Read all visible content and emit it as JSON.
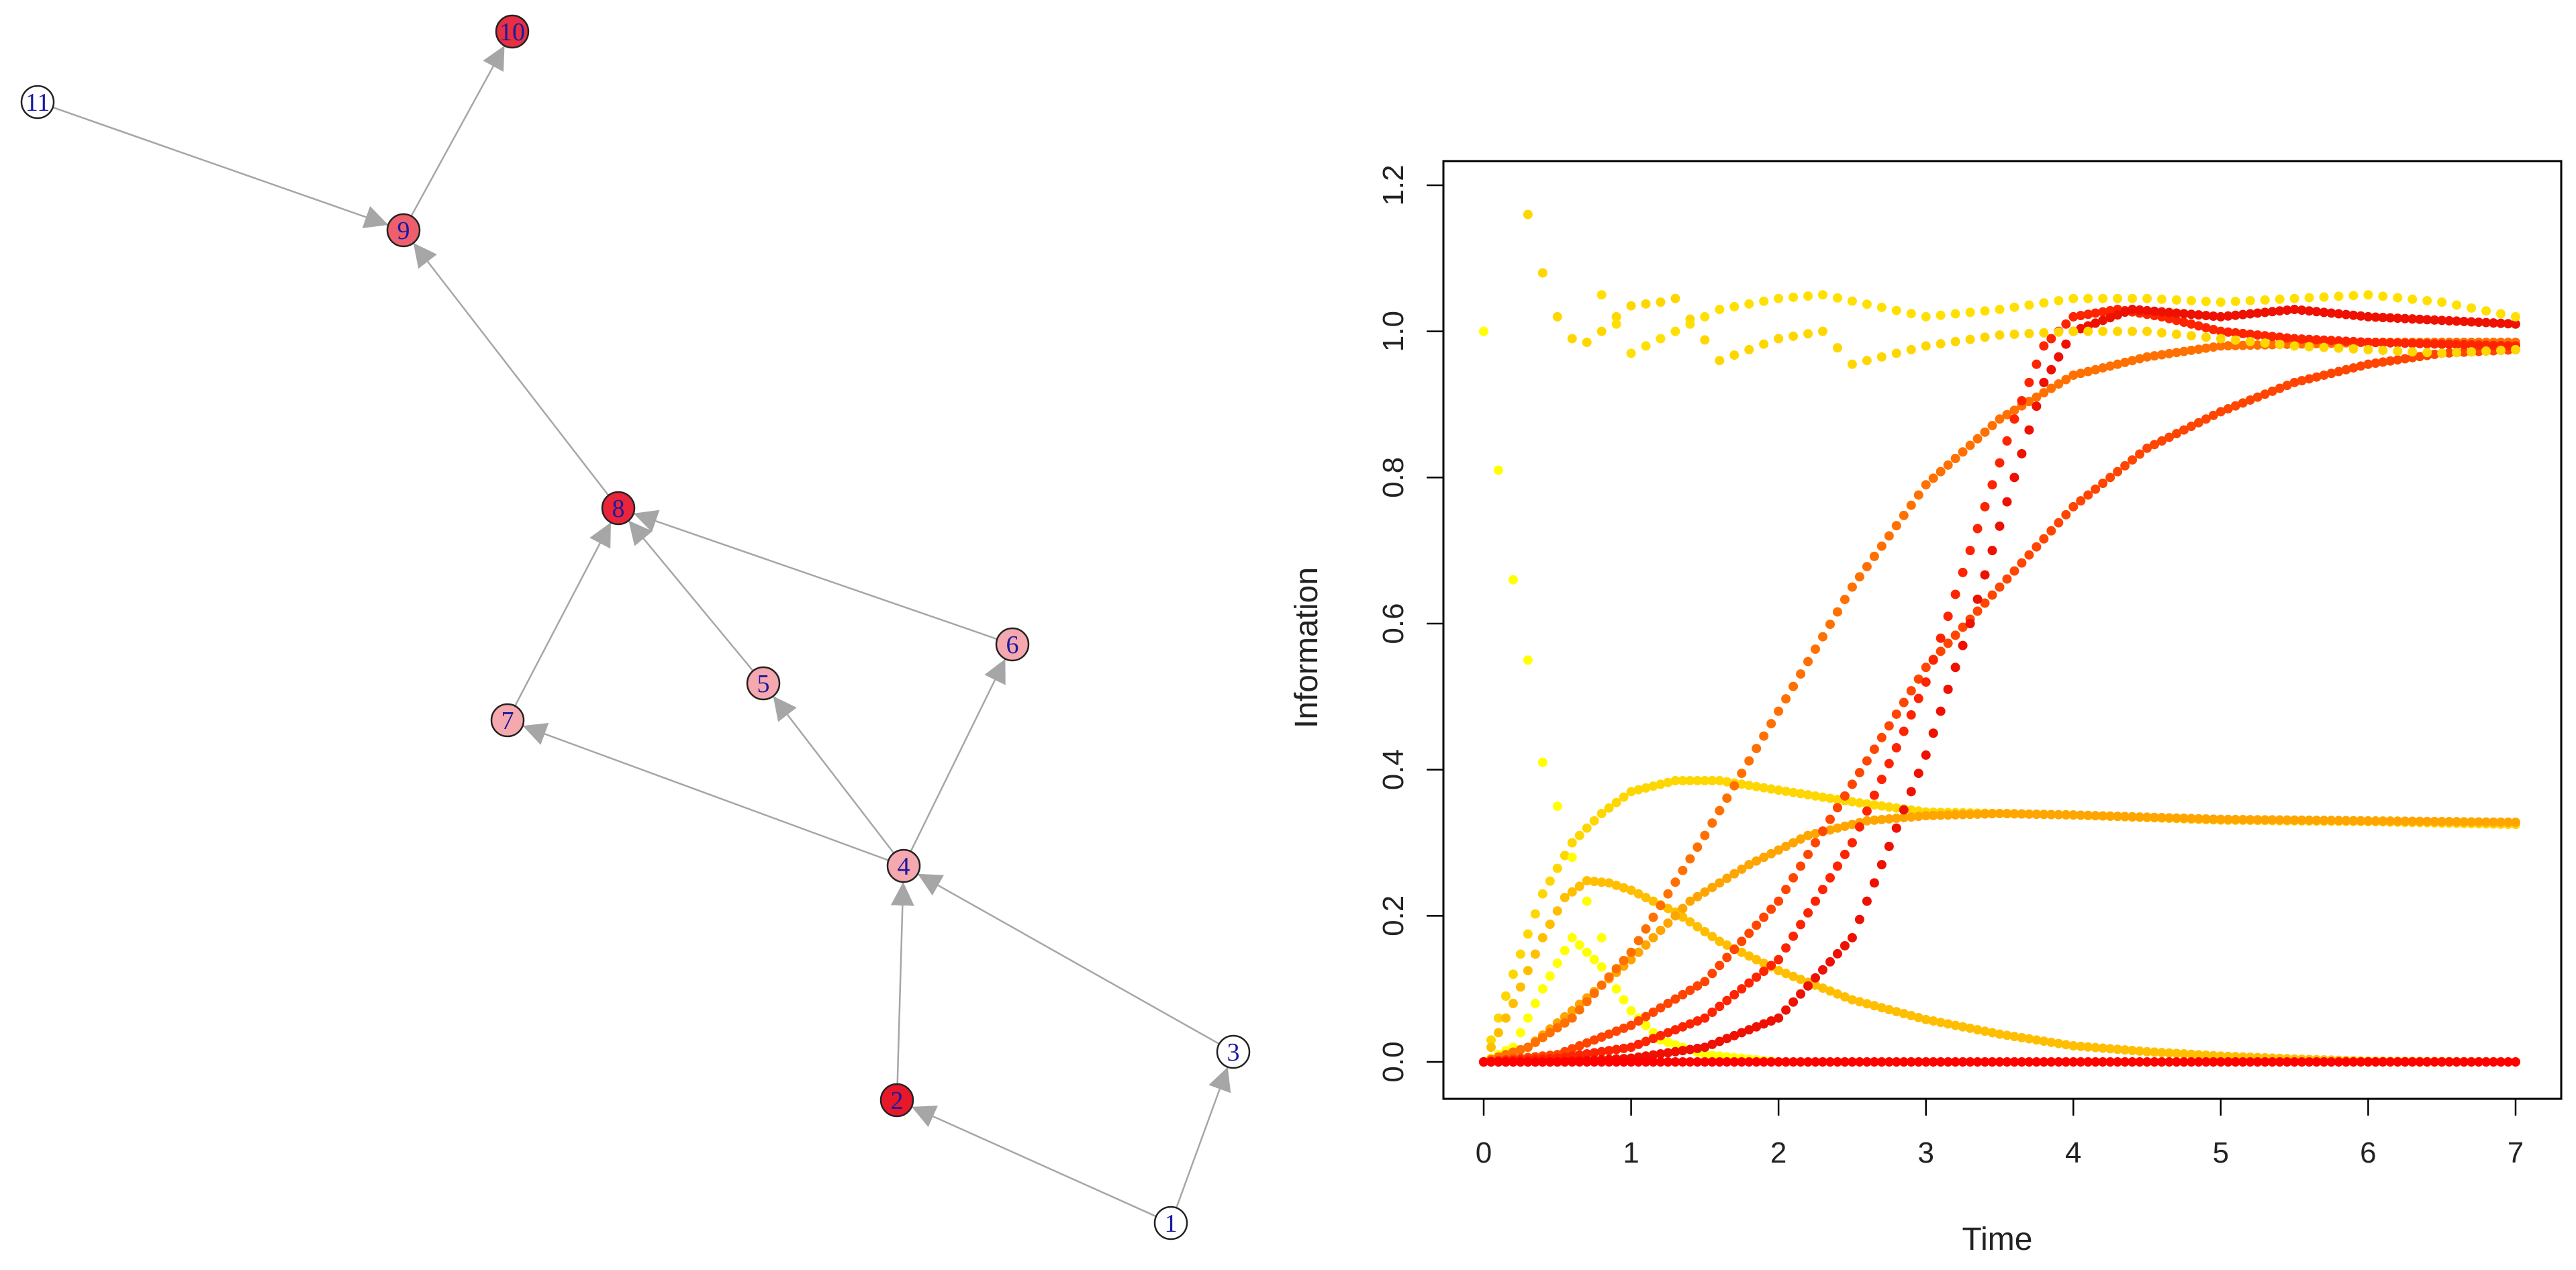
{
  "network": {
    "nodes": [
      {
        "id": "1",
        "label": "1",
        "color": "#ffffff"
      },
      {
        "id": "2",
        "label": "2",
        "color": "#e8182b"
      },
      {
        "id": "3",
        "label": "3",
        "color": "#ffffff"
      },
      {
        "id": "4",
        "label": "4",
        "color": "#f5a8ae"
      },
      {
        "id": "5",
        "label": "5",
        "color": "#f5a8ae"
      },
      {
        "id": "6",
        "label": "6",
        "color": "#f5a8ae"
      },
      {
        "id": "7",
        "label": "7",
        "color": "#f5a8ae"
      },
      {
        "id": "8",
        "label": "8",
        "color": "#e8253a"
      },
      {
        "id": "9",
        "label": "9",
        "color": "#ee5f6e"
      },
      {
        "id": "10",
        "label": "10",
        "color": "#e52f42"
      },
      {
        "id": "11",
        "label": "11",
        "color": "#ffffff"
      }
    ],
    "edges": [
      [
        "1",
        "2"
      ],
      [
        "1",
        "3"
      ],
      [
        "2",
        "4"
      ],
      [
        "3",
        "4"
      ],
      [
        "4",
        "7"
      ],
      [
        "4",
        "5"
      ],
      [
        "4",
        "6"
      ],
      [
        "7",
        "8"
      ],
      [
        "5",
        "8"
      ],
      [
        "6",
        "8"
      ],
      [
        "8",
        "9"
      ],
      [
        "11",
        "9"
      ],
      [
        "9",
        "10"
      ]
    ],
    "label_color": "#1a1aa0",
    "edge_color": "#a6a6a6"
  },
  "chart_data": {
    "type": "scatter",
    "xlabel": "Time",
    "ylabel": "Information",
    "xlim": [
      0,
      7
    ],
    "ylim": [
      0,
      1.2
    ],
    "xticks": [
      "0",
      "1",
      "2",
      "3",
      "4",
      "5",
      "6",
      "7"
    ],
    "yticks": [
      "0.0",
      "0.2",
      "0.4",
      "0.6",
      "0.8",
      "1.0",
      "1.2"
    ],
    "series": [
      {
        "color": "#ffff00",
        "points": [
          [
            0,
            0.0
          ],
          [
            0.2,
            0.02
          ],
          [
            0.4,
            0.1
          ],
          [
            0.6,
            0.17
          ],
          [
            0.8,
            0.13
          ],
          [
            1.0,
            0.07
          ],
          [
            1.2,
            0.03
          ],
          [
            1.5,
            0.01
          ],
          [
            2.0,
            0.0
          ],
          [
            3.0,
            0.0
          ],
          [
            7.0,
            0.0
          ]
        ]
      },
      {
        "color": "#ffd700",
        "points": [
          [
            0,
            0.0
          ],
          [
            0.2,
            0.12
          ],
          [
            0.4,
            0.23
          ],
          [
            0.6,
            0.3
          ],
          [
            0.8,
            0.34
          ],
          [
            1.0,
            0.37
          ],
          [
            1.3,
            0.385
          ],
          [
            1.6,
            0.385
          ],
          [
            2.0,
            0.372
          ],
          [
            2.5,
            0.356
          ],
          [
            3.0,
            0.342
          ],
          [
            4.0,
            0.338
          ],
          [
            5.0,
            0.331
          ],
          [
            6.0,
            0.329
          ],
          [
            7.0,
            0.325
          ]
        ]
      },
      {
        "color": "#ffbf00",
        "points": [
          [
            0,
            0.0
          ],
          [
            0.2,
            0.08
          ],
          [
            0.4,
            0.17
          ],
          [
            0.55,
            0.225
          ],
          [
            0.7,
            0.248
          ],
          [
            0.85,
            0.245
          ],
          [
            1.0,
            0.235
          ],
          [
            1.3,
            0.205
          ],
          [
            1.6,
            0.165
          ],
          [
            2.0,
            0.125
          ],
          [
            2.5,
            0.085
          ],
          [
            3.0,
            0.058
          ],
          [
            3.5,
            0.038
          ],
          [
            4.0,
            0.022
          ],
          [
            4.5,
            0.014
          ],
          [
            5.0,
            0.008
          ],
          [
            5.5,
            0.004
          ],
          [
            6.0,
            0.001
          ],
          [
            7.0,
            0.0
          ]
        ]
      },
      {
        "color": "#ffa500",
        "points": [
          [
            0,
            0.0
          ],
          [
            0.3,
            0.02
          ],
          [
            0.6,
            0.07
          ],
          [
            1.0,
            0.14
          ],
          [
            1.4,
            0.22
          ],
          [
            1.8,
            0.27
          ],
          [
            2.2,
            0.31
          ],
          [
            2.6,
            0.33
          ],
          [
            3.0,
            0.337
          ],
          [
            3.5,
            0.34
          ],
          [
            4.0,
            0.338
          ],
          [
            5.0,
            0.332
          ],
          [
            6.0,
            0.33
          ],
          [
            7.0,
            0.328
          ]
        ]
      },
      {
        "color": "#ff7000",
        "points": [
          [
            0,
            0.0
          ],
          [
            0.3,
            0.02
          ],
          [
            0.6,
            0.06
          ],
          [
            1.0,
            0.15
          ],
          [
            1.5,
            0.31
          ],
          [
            2.0,
            0.48
          ],
          [
            2.5,
            0.65
          ],
          [
            3.0,
            0.79
          ],
          [
            3.5,
            0.88
          ],
          [
            4.0,
            0.94
          ],
          [
            4.5,
            0.965
          ],
          [
            5.0,
            0.98
          ],
          [
            6.0,
            0.985
          ],
          [
            7.0,
            0.985
          ]
        ]
      },
      {
        "color": "#ff4500",
        "points": [
          [
            0,
            0.0
          ],
          [
            0.5,
            0.01
          ],
          [
            1.0,
            0.05
          ],
          [
            1.5,
            0.11
          ],
          [
            2.0,
            0.22
          ],
          [
            2.5,
            0.38
          ],
          [
            3.0,
            0.54
          ],
          [
            3.5,
            0.65
          ],
          [
            4.0,
            0.76
          ],
          [
            4.5,
            0.84
          ],
          [
            5.0,
            0.89
          ],
          [
            5.5,
            0.93
          ],
          [
            6.0,
            0.955
          ],
          [
            6.5,
            0.97
          ],
          [
            7.0,
            0.975
          ]
        ]
      },
      {
        "color": "#ff2400",
        "points": [
          [
            0,
            0.0
          ],
          [
            0.5,
            0.005
          ],
          [
            1.0,
            0.02
          ],
          [
            1.5,
            0.06
          ],
          [
            2.0,
            0.14
          ],
          [
            2.5,
            0.3
          ],
          [
            2.8,
            0.43
          ],
          [
            3.0,
            0.52
          ],
          [
            3.3,
            0.7
          ],
          [
            3.6,
            0.88
          ],
          [
            3.8,
            0.98
          ],
          [
            4.0,
            1.02
          ],
          [
            4.3,
            1.03
          ],
          [
            4.6,
            1.02
          ],
          [
            5.0,
            1.0
          ],
          [
            5.5,
            0.99
          ],
          [
            6.0,
            0.985
          ],
          [
            7.0,
            0.98
          ]
        ]
      },
      {
        "color": "#ee1000",
        "points": [
          [
            0,
            0.0
          ],
          [
            0.5,
            0.0
          ],
          [
            1.0,
            0.005
          ],
          [
            1.5,
            0.02
          ],
          [
            2.0,
            0.06
          ],
          [
            2.5,
            0.17
          ],
          [
            3.0,
            0.42
          ],
          [
            3.3,
            0.6
          ],
          [
            3.6,
            0.8
          ],
          [
            3.8,
            0.93
          ],
          [
            4.0,
            1.0
          ],
          [
            4.4,
            1.03
          ],
          [
            5.0,
            1.02
          ],
          [
            5.5,
            1.03
          ],
          [
            6.0,
            1.02
          ],
          [
            6.5,
            1.015
          ],
          [
            7.0,
            1.01
          ]
        ]
      },
      {
        "color": "#ff0000",
        "points": [
          [
            0,
            0.0
          ],
          [
            7.0,
            0.0
          ]
        ]
      }
    ],
    "yellow_extra": [
      {
        "color": "#ffff00",
        "points": [
          [
            0.0,
            1.0
          ],
          [
            0.05,
            0.9
          ],
          [
            0.1,
            0.81
          ],
          [
            0.15,
            0.73
          ],
          [
            0.2,
            0.66
          ],
          [
            0.25,
            0.6
          ],
          [
            0.3,
            0.55
          ],
          [
            0.35,
            0.47
          ],
          [
            0.4,
            0.41
          ],
          [
            0.5,
            0.35
          ],
          [
            0.6,
            0.28
          ],
          [
            0.7,
            0.22
          ],
          [
            0.8,
            0.17
          ]
        ]
      },
      {
        "color": "#ffd700",
        "points": [
          [
            0.3,
            1.16
          ],
          [
            0.4,
            1.08
          ],
          [
            0.5,
            1.02
          ],
          [
            0.6,
            0.99
          ],
          [
            0.7,
            0.985
          ],
          [
            0.8,
            1.0
          ],
          [
            0.9,
            1.02
          ],
          [
            1.0,
            1.035
          ],
          [
            1.2,
            1.04
          ],
          [
            1.3,
            1.045
          ],
          [
            1.6,
            0.96
          ],
          [
            2.0,
            0.99
          ],
          [
            2.3,
            1.0
          ],
          [
            2.5,
            0.955
          ],
          [
            3.0,
            0.98
          ],
          [
            3.5,
            0.995
          ],
          [
            4.0,
            1.0
          ],
          [
            4.5,
            1.0
          ],
          [
            5.0,
            0.99
          ],
          [
            5.5,
            0.98
          ],
          [
            6.0,
            0.975
          ],
          [
            6.5,
            0.97
          ],
          [
            7.0,
            0.975
          ]
        ]
      },
      {
        "color": "#ffe000",
        "points": [
          [
            0.8,
            1.05
          ],
          [
            1.0,
            0.97
          ],
          [
            1.3,
            1.0
          ],
          [
            1.6,
            1.03
          ],
          [
            2.0,
            1.045
          ],
          [
            2.3,
            1.05
          ],
          [
            3.0,
            1.02
          ],
          [
            3.5,
            1.03
          ],
          [
            4.0,
            1.045
          ],
          [
            4.5,
            1.045
          ],
          [
            5.0,
            1.04
          ],
          [
            5.5,
            1.045
          ],
          [
            6.0,
            1.05
          ],
          [
            6.5,
            1.04
          ],
          [
            7.0,
            1.02
          ]
        ]
      }
    ]
  }
}
